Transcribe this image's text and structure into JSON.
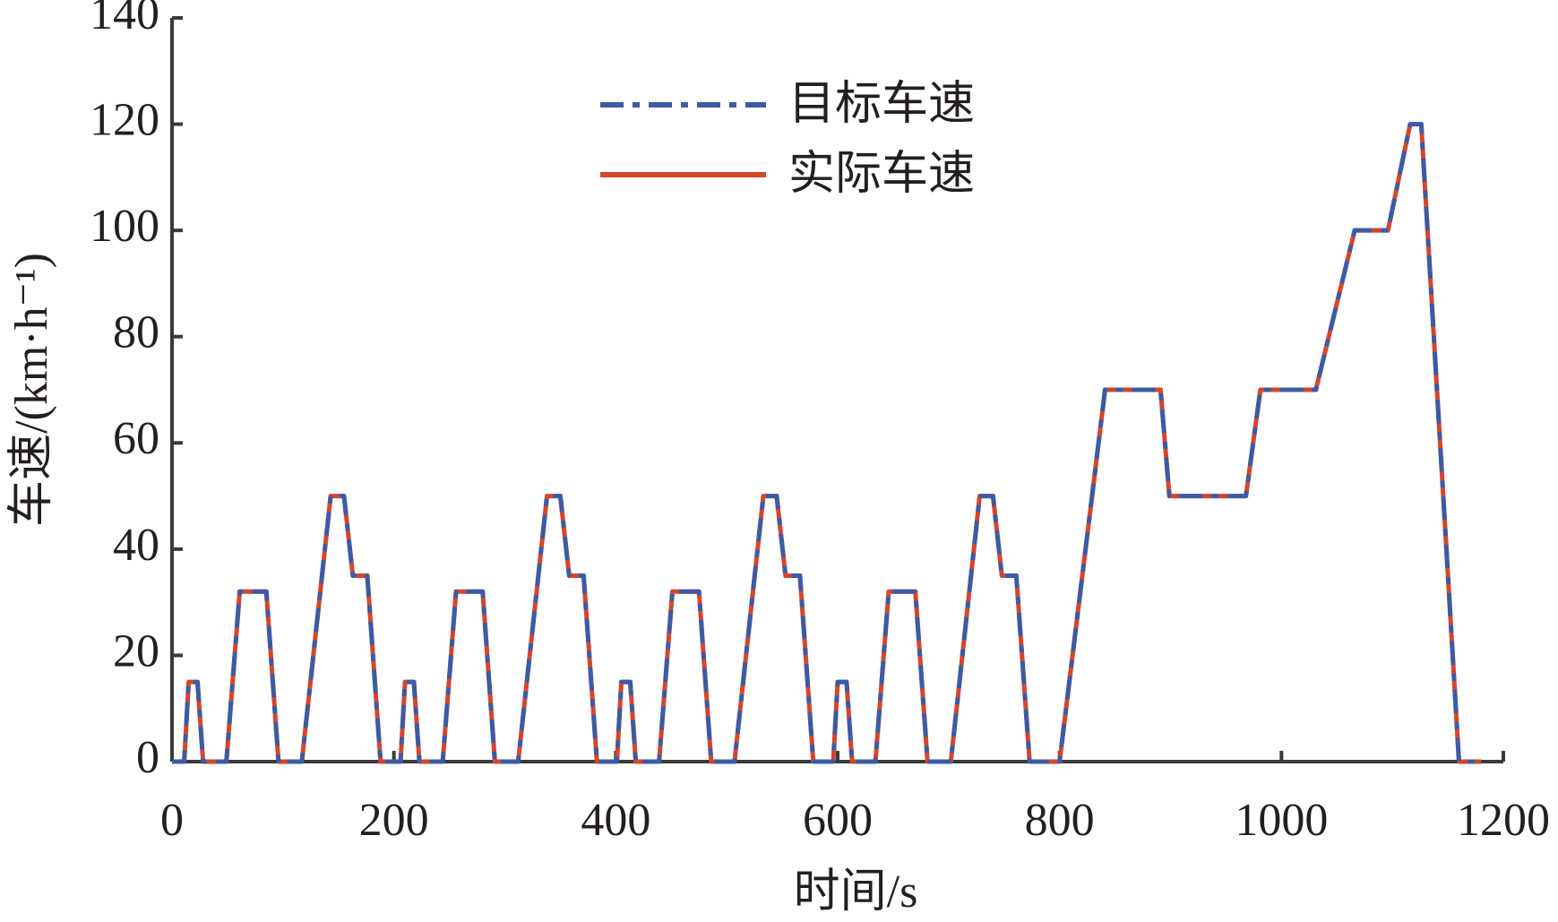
{
  "chart_data": {
    "type": "line",
    "x_label": "时间/s",
    "y_label": "车速/(km·h⁻¹)",
    "x": [
      0,
      11,
      15,
      23,
      28,
      49,
      61,
      85,
      96,
      117,
      143,
      155,
      163,
      176,
      188,
      195,
      206,
      210,
      218,
      223,
      244,
      256,
      280,
      291,
      312,
      338,
      350,
      358,
      371,
      383,
      390,
      401,
      405,
      413,
      418,
      439,
      451,
      475,
      486,
      507,
      533,
      545,
      553,
      566,
      578,
      585,
      596,
      600,
      608,
      613,
      634,
      646,
      670,
      681,
      702,
      728,
      740,
      748,
      761,
      773,
      780,
      800,
      841,
      891,
      899,
      968,
      981,
      1031,
      1066,
      1096,
      1116,
      1126,
      1160,
      1180
    ],
    "series": [
      {
        "name": "目标车速",
        "color": "#3b5ba5",
        "dash": "dashdot",
        "values": [
          0,
          0,
          15,
          15,
          0,
          0,
          32,
          32,
          0,
          0,
          50,
          50,
          35,
          35,
          0,
          0,
          0,
          15,
          15,
          0,
          0,
          32,
          32,
          0,
          0,
          50,
          50,
          35,
          35,
          0,
          0,
          0,
          15,
          15,
          0,
          0,
          32,
          32,
          0,
          0,
          50,
          50,
          35,
          35,
          0,
          0,
          0,
          15,
          15,
          0,
          0,
          32,
          32,
          0,
          0,
          50,
          50,
          35,
          35,
          0,
          0,
          0,
          70,
          70,
          50,
          50,
          70,
          70,
          100,
          100,
          120,
          120,
          0,
          0
        ]
      },
      {
        "name": "实际车速",
        "color": "#d5452a",
        "dash": "solid",
        "values": [
          0,
          0,
          15,
          15,
          0,
          0,
          32,
          32,
          0,
          0,
          50,
          50,
          35,
          35,
          0,
          0,
          0,
          15,
          15,
          0,
          0,
          32,
          32,
          0,
          0,
          50,
          50,
          35,
          35,
          0,
          0,
          0,
          15,
          15,
          0,
          0,
          32,
          32,
          0,
          0,
          50,
          50,
          35,
          35,
          0,
          0,
          0,
          15,
          15,
          0,
          0,
          32,
          32,
          0,
          0,
          50,
          50,
          35,
          35,
          0,
          0,
          0,
          70,
          70,
          50,
          50,
          70,
          70,
          100,
          100,
          120,
          120,
          0,
          0
        ]
      }
    ],
    "xlim": [
      0,
      1200
    ],
    "xticks": [
      0,
      200,
      400,
      600,
      800,
      1000,
      1200
    ],
    "ylim": [
      0,
      140
    ],
    "yticks": [
      0,
      20,
      40,
      60,
      80,
      100,
      120,
      140
    ],
    "grid": false,
    "legend": "top-center"
  }
}
